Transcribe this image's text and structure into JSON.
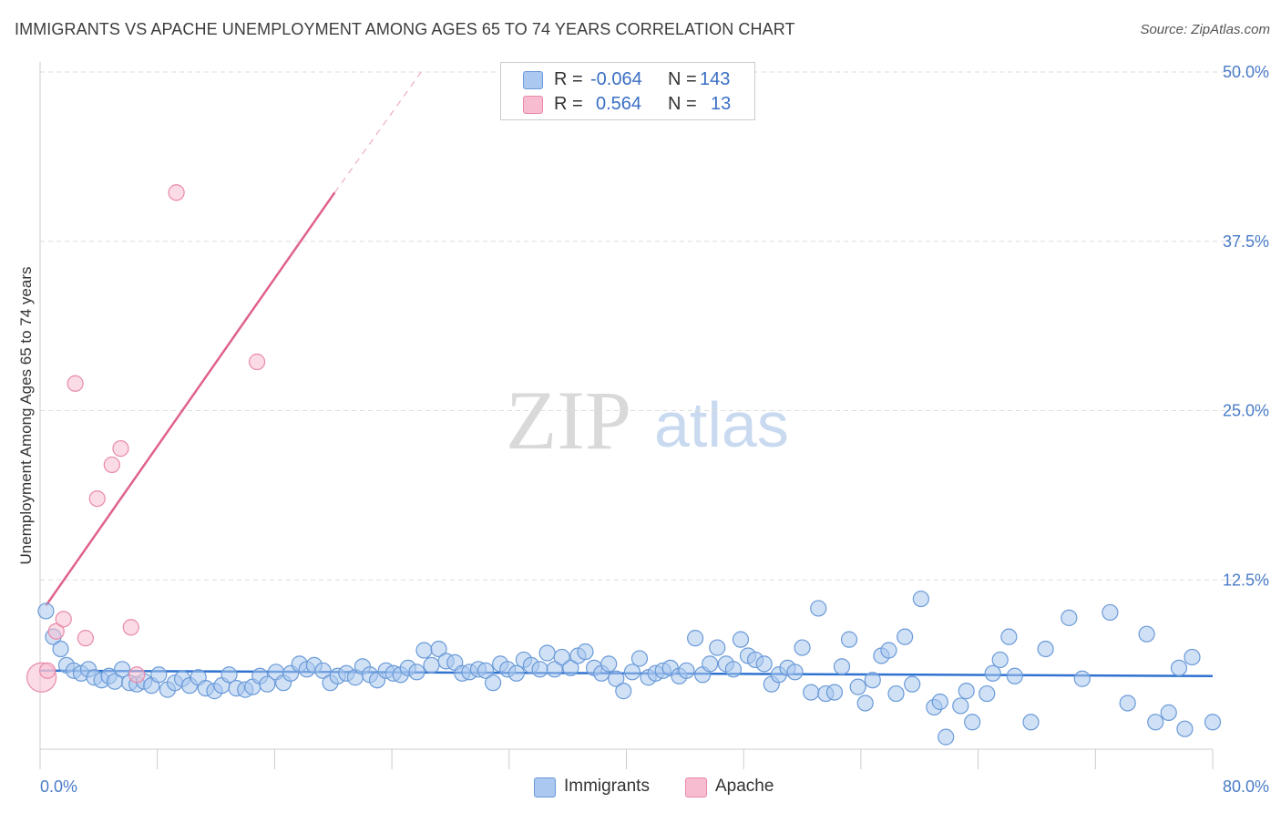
{
  "title": "IMMIGRANTS VS APACHE UNEMPLOYMENT AMONG AGES 65 TO 74 YEARS CORRELATION CHART",
  "source": "Source: ZipAtlas.com",
  "watermark": {
    "zip": "ZIP",
    "atlas": "atlas"
  },
  "legend": {
    "rows": [
      {
        "r_label": "R =",
        "r_value": "-0.064",
        "n_label": "N =",
        "n_value": "143",
        "color": "#aac8f0"
      },
      {
        "r_label": "R =",
        "r_value": "0.564",
        "n_label": "N =",
        "n_value": "13",
        "color": "#f8bcd0"
      }
    ]
  },
  "bottom_legend": {
    "immigrants": "Immigrants",
    "apache": "Apache"
  },
  "colors": {
    "blue_fill": "#a9c8ef",
    "blue_stroke": "#6a9ad8",
    "blue_line": "#2f72cf",
    "pink_fill": "#f7bfd1",
    "pink_stroke": "#e88aa8",
    "pink_line": "#e0628c",
    "grid": "#dddddd",
    "tick_text": "#4a7cc7"
  },
  "chart_data": {
    "type": "scatter",
    "title": "IMMIGRANTS VS APACHE UNEMPLOYMENT AMONG AGES 65 TO 74 YEARS CORRELATION CHART",
    "xlabel": "",
    "ylabel": "Unemployment Among Ages 65 to 74 years",
    "xlim": [
      0,
      80
    ],
    "ylim": [
      0,
      50
    ],
    "x_tick_labels": [
      "0.0%",
      "80.0%"
    ],
    "y_ticks": [
      12.5,
      25.0,
      37.5,
      50.0
    ],
    "y_tick_labels": [
      "12.5%",
      "25.0%",
      "37.5%",
      "50.0%"
    ],
    "grid": true,
    "series": [
      {
        "name": "Immigrants",
        "R": -0.064,
        "N": 143,
        "trend": {
          "x": [
            0,
            80
          ],
          "y": [
            5.8,
            5.4
          ]
        },
        "points": [
          [
            0.4,
            10.2
          ],
          [
            0.9,
            8.3
          ],
          [
            1.4,
            7.4
          ],
          [
            1.8,
            6.2
          ],
          [
            2.3,
            5.8
          ],
          [
            2.8,
            5.6
          ],
          [
            3.3,
            5.9
          ],
          [
            3.7,
            5.3
          ],
          [
            4.2,
            5.1
          ],
          [
            4.7,
            5.4
          ],
          [
            5.1,
            5.0
          ],
          [
            5.6,
            5.9
          ],
          [
            6.1,
            4.9
          ],
          [
            6.6,
            4.8
          ],
          [
            7.1,
            5.0
          ],
          [
            7.6,
            4.7
          ],
          [
            8.1,
            5.5
          ],
          [
            8.7,
            4.4
          ],
          [
            9.2,
            4.9
          ],
          [
            9.7,
            5.2
          ],
          [
            10.2,
            4.7
          ],
          [
            10.8,
            5.3
          ],
          [
            11.3,
            4.5
          ],
          [
            11.9,
            4.3
          ],
          [
            12.4,
            4.7
          ],
          [
            12.9,
            5.5
          ],
          [
            13.4,
            4.5
          ],
          [
            14.0,
            4.4
          ],
          [
            14.5,
            4.6
          ],
          [
            15.0,
            5.4
          ],
          [
            15.5,
            4.8
          ],
          [
            16.1,
            5.7
          ],
          [
            16.6,
            4.9
          ],
          [
            17.1,
            5.6
          ],
          [
            17.7,
            6.3
          ],
          [
            18.2,
            5.9
          ],
          [
            18.7,
            6.2
          ],
          [
            19.3,
            5.8
          ],
          [
            19.8,
            4.9
          ],
          [
            20.3,
            5.4
          ],
          [
            20.9,
            5.6
          ],
          [
            21.5,
            5.3
          ],
          [
            22.0,
            6.1
          ],
          [
            22.5,
            5.5
          ],
          [
            23.0,
            5.1
          ],
          [
            23.6,
            5.8
          ],
          [
            24.1,
            5.6
          ],
          [
            24.6,
            5.5
          ],
          [
            25.1,
            6.0
          ],
          [
            25.7,
            5.7
          ],
          [
            26.2,
            7.3
          ],
          [
            26.7,
            6.2
          ],
          [
            27.2,
            7.4
          ],
          [
            27.7,
            6.5
          ],
          [
            28.3,
            6.4
          ],
          [
            28.8,
            5.6
          ],
          [
            29.3,
            5.7
          ],
          [
            29.9,
            5.9
          ],
          [
            30.4,
            5.8
          ],
          [
            30.9,
            4.9
          ],
          [
            31.4,
            6.3
          ],
          [
            31.9,
            5.9
          ],
          [
            32.5,
            5.6
          ],
          [
            33.0,
            6.6
          ],
          [
            33.5,
            6.2
          ],
          [
            34.1,
            5.9
          ],
          [
            34.6,
            7.1
          ],
          [
            35.1,
            5.9
          ],
          [
            35.6,
            6.8
          ],
          [
            36.2,
            6.0
          ],
          [
            36.7,
            6.9
          ],
          [
            37.2,
            7.2
          ],
          [
            37.8,
            6.0
          ],
          [
            38.3,
            5.6
          ],
          [
            38.8,
            6.3
          ],
          [
            39.3,
            5.2
          ],
          [
            39.8,
            4.3
          ],
          [
            40.4,
            5.7
          ],
          [
            40.9,
            6.7
          ],
          [
            41.5,
            5.3
          ],
          [
            42.0,
            5.6
          ],
          [
            42.5,
            5.8
          ],
          [
            43.0,
            6.0
          ],
          [
            43.6,
            5.4
          ],
          [
            44.1,
            5.8
          ],
          [
            44.7,
            8.2
          ],
          [
            45.2,
            5.5
          ],
          [
            45.7,
            6.3
          ],
          [
            46.2,
            7.5
          ],
          [
            46.8,
            6.3
          ],
          [
            47.3,
            5.9
          ],
          [
            47.8,
            8.1
          ],
          [
            48.3,
            6.9
          ],
          [
            48.8,
            6.6
          ],
          [
            49.4,
            6.3
          ],
          [
            49.9,
            4.8
          ],
          [
            50.4,
            5.5
          ],
          [
            51.0,
            6.0
          ],
          [
            51.5,
            5.7
          ],
          [
            52.0,
            7.5
          ],
          [
            52.6,
            4.2
          ],
          [
            53.1,
            10.4
          ],
          [
            53.6,
            4.1
          ],
          [
            54.2,
            4.2
          ],
          [
            54.7,
            6.1
          ],
          [
            55.2,
            8.1
          ],
          [
            55.8,
            4.6
          ],
          [
            56.3,
            3.4
          ],
          [
            56.8,
            5.1
          ],
          [
            57.4,
            6.9
          ],
          [
            57.9,
            7.3
          ],
          [
            58.4,
            4.1
          ],
          [
            59.0,
            8.3
          ],
          [
            59.5,
            4.8
          ],
          [
            60.1,
            11.1
          ],
          [
            61.0,
            3.1
          ],
          [
            61.4,
            3.5
          ],
          [
            61.8,
            0.9
          ],
          [
            62.8,
            3.2
          ],
          [
            63.2,
            4.3
          ],
          [
            63.6,
            2.0
          ],
          [
            64.6,
            4.1
          ],
          [
            65.0,
            5.6
          ],
          [
            65.5,
            6.6
          ],
          [
            66.1,
            8.3
          ],
          [
            66.5,
            5.4
          ],
          [
            67.6,
            2.0
          ],
          [
            68.6,
            7.4
          ],
          [
            70.2,
            9.7
          ],
          [
            71.1,
            5.2
          ],
          [
            73.0,
            10.1
          ],
          [
            74.2,
            3.4
          ],
          [
            75.5,
            8.5
          ],
          [
            76.1,
            2.0
          ],
          [
            77.0,
            2.7
          ],
          [
            77.7,
            6.0
          ],
          [
            78.1,
            1.5
          ],
          [
            78.6,
            6.8
          ],
          [
            80.0,
            2.0
          ]
        ]
      },
      {
        "name": "Apache",
        "R": 0.564,
        "N": 13,
        "trend": {
          "x": [
            0.4,
            20.1
          ],
          "y": [
            10.6,
            41.1
          ],
          "dashed_to": {
            "x": 26.0,
            "y": 50.0
          }
        },
        "points": [
          [
            0.1,
            5.3
          ],
          [
            0.5,
            5.8
          ],
          [
            1.1,
            8.7
          ],
          [
            1.6,
            9.6
          ],
          [
            2.4,
            27.0
          ],
          [
            3.1,
            8.2
          ],
          [
            3.9,
            18.5
          ],
          [
            4.9,
            21.0
          ],
          [
            5.5,
            22.2
          ],
          [
            6.2,
            9.0
          ],
          [
            6.6,
            5.5
          ],
          [
            14.8,
            28.6
          ],
          [
            9.3,
            41.1
          ]
        ]
      }
    ]
  }
}
